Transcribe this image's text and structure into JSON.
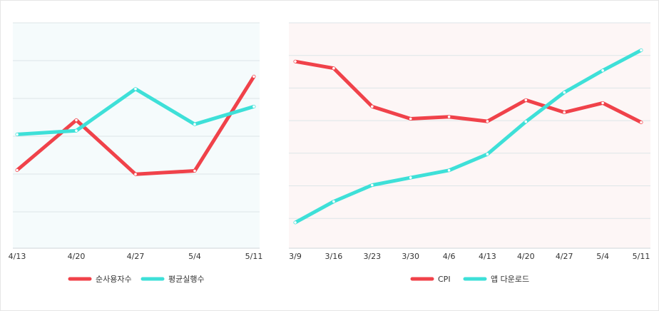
{
  "chart_data": [
    {
      "type": "line",
      "title": "",
      "x": [
        "4/13",
        "4/20",
        "4/27",
        "5/4",
        "5/11"
      ],
      "series": [
        {
          "name": "순사용자수",
          "color": "#f0424a",
          "values": [
            20.8,
            34.1,
            19.7,
            20.6,
            45.7
          ]
        },
        {
          "name": "평균실행수",
          "color": "#3ee0d8",
          "values": [
            30.3,
            31.3,
            42.4,
            33.0,
            37.7
          ]
        }
      ],
      "ylim": [
        0,
        60
      ],
      "grid": true,
      "background": "#f5fbfc",
      "legend": "bottom"
    },
    {
      "type": "line",
      "title": "",
      "x": [
        "3/9",
        "3/16",
        "3/23",
        "3/30",
        "4/6",
        "4/13",
        "4/20",
        "4/27",
        "5/4",
        "5/11"
      ],
      "series": [
        {
          "name": "CPI",
          "color": "#f0424a",
          "values": [
            58.0,
            55.9,
            44.0,
            40.2,
            40.8,
            39.4,
            46.0,
            42.2,
            45.1,
            39.1
          ]
        },
        {
          "name": "앱 다운로드",
          "color": "#3ee0d8",
          "values": [
            8.0,
            14.5,
            19.6,
            21.9,
            24.2,
            29.2,
            39.3,
            48.4,
            55.2,
            61.5
          ]
        }
      ],
      "ylim": [
        0,
        70
      ],
      "grid": true,
      "background": "#fdf6f6",
      "legend": "bottom"
    }
  ]
}
